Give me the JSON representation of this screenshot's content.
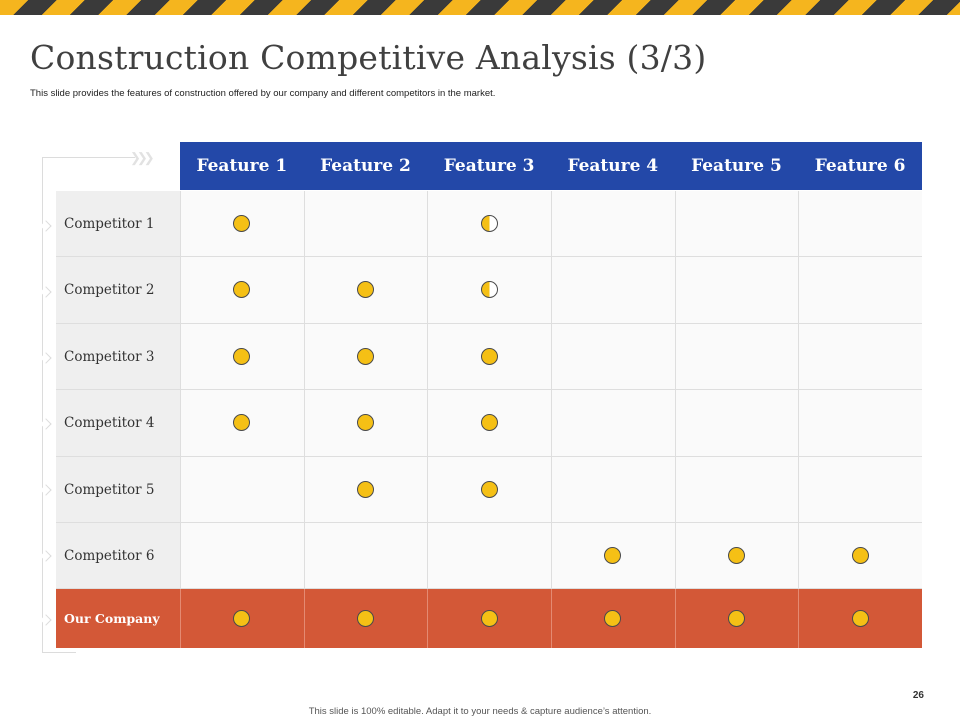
{
  "slide": {
    "title": "Construction Competitive Analysis (3/3)",
    "subtitle": "This slide provides the  features of construction offered by our company  and  different competitors in the market.",
    "page_number": "26",
    "footer": "This slide is 100% editable.  Adapt it to your needs & capture audience’s attention."
  },
  "colors": {
    "header_blue": "#2348a8",
    "company_row": "#d35837",
    "dot_yellow": "#f5c015",
    "hazard_yellow": "#f5b51e",
    "hazard_dark": "#3a3a3a"
  },
  "table": {
    "features": [
      "Feature 1",
      "Feature 2",
      "Feature 3",
      "Feature 4",
      "Feature 5",
      "Feature 6"
    ],
    "rows": [
      {
        "name": "Competitor 1",
        "marks": [
          "full",
          "none",
          "half",
          "none",
          "none",
          "none"
        ]
      },
      {
        "name": "Competitor 2",
        "marks": [
          "full",
          "full",
          "half",
          "none",
          "none",
          "none"
        ]
      },
      {
        "name": "Competitor 3",
        "marks": [
          "full",
          "full",
          "full",
          "none",
          "none",
          "none"
        ]
      },
      {
        "name": "Competitor 4",
        "marks": [
          "full",
          "full",
          "full",
          "none",
          "none",
          "none"
        ]
      },
      {
        "name": "Competitor 5",
        "marks": [
          "none",
          "full",
          "full",
          "none",
          "none",
          "none"
        ]
      },
      {
        "name": "Competitor 6",
        "marks": [
          "none",
          "none",
          "none",
          "full",
          "full",
          "full"
        ]
      },
      {
        "name": "Our Company",
        "marks": [
          "full",
          "full",
          "full",
          "full",
          "full",
          "full"
        ]
      }
    ]
  }
}
